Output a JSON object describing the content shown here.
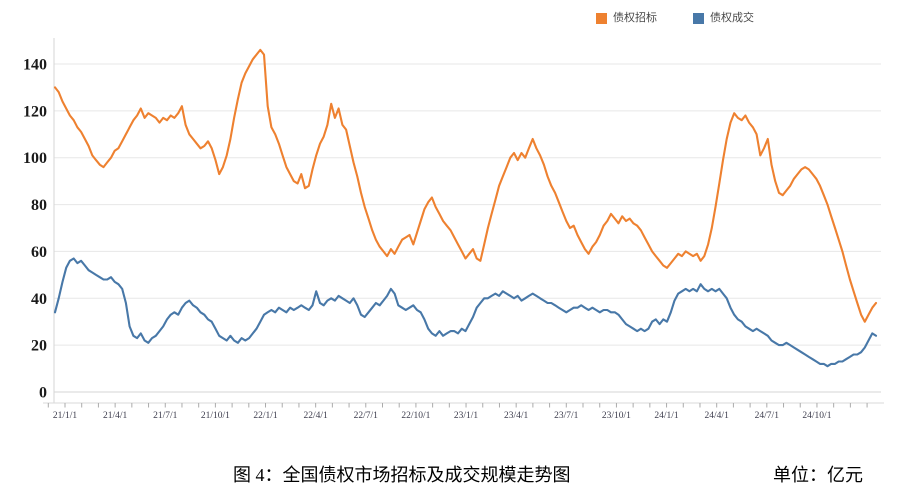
{
  "legend": {
    "items": [
      {
        "label": "债权招标",
        "color": "#EE8130"
      },
      {
        "label": "债权成交",
        "color": "#4878A8"
      }
    ]
  },
  "caption": {
    "title": "图 4：全国债权市场招标及成交规模走势图",
    "unit": "单位：亿元"
  },
  "chart_data": {
    "type": "line",
    "title": "全国债权市场招标及成交规模走势图",
    "unit": "亿元",
    "ylim": [
      0,
      140
    ],
    "y_ticks": [
      0,
      20,
      40,
      60,
      80,
      100,
      120,
      140
    ],
    "grid": true,
    "legend_position": "top",
    "x_tick_labels": [
      "21/1/1",
      "21/4/1",
      "21/7/1",
      "21/10/1",
      "22/1/1",
      "22/4/1",
      "22/7/1",
      "22/10/1",
      "23/1/1",
      "23/4/1",
      "23/7/1",
      "23/10/1",
      "24/1/1",
      "24/4/1",
      "24/7/1",
      "24/10/1"
    ],
    "x_frequency": "weekly",
    "series": [
      {
        "name": "债权招标",
        "color": "#EE8130",
        "values": [
          130,
          128,
          124,
          121,
          118,
          116,
          113,
          111,
          108,
          105,
          101,
          99,
          97,
          96,
          98,
          100,
          103,
          104,
          107,
          110,
          113,
          116,
          118,
          121,
          117,
          119,
          118,
          117,
          115,
          117,
          116,
          118,
          117,
          119,
          122,
          114,
          110,
          108,
          106,
          104,
          105,
          107,
          104,
          99,
          93,
          96,
          101,
          108,
          117,
          125,
          132,
          136,
          139,
          142,
          144,
          146,
          144,
          122,
          113,
          110,
          106,
          101,
          96,
          93,
          90,
          89,
          93,
          87,
          88,
          95,
          101,
          106,
          109,
          114,
          123,
          117,
          121,
          114,
          112,
          105,
          98,
          92,
          85,
          79,
          74,
          69,
          65,
          62,
          60,
          58,
          61,
          59,
          62,
          65,
          66,
          67,
          63,
          68,
          73,
          78,
          81,
          83,
          79,
          76,
          73,
          71,
          69,
          66,
          63,
          60,
          57,
          59,
          61,
          57,
          56,
          63,
          70,
          76,
          82,
          88,
          92,
          96,
          100,
          102,
          99,
          102,
          100,
          104,
          108,
          104,
          101,
          97,
          92,
          88,
          85,
          81,
          77,
          73,
          70,
          71,
          67,
          64,
          61,
          59,
          62,
          64,
          67,
          71,
          73,
          76,
          74,
          72,
          75,
          73,
          74,
          72,
          71,
          69,
          66,
          63,
          60,
          58,
          56,
          54,
          53,
          55,
          57,
          59,
          58,
          60,
          59,
          58,
          59,
          56,
          58,
          63,
          70,
          79,
          89,
          99,
          108,
          115,
          119,
          117,
          116,
          118,
          115,
          113,
          110,
          101,
          104,
          108,
          97,
          90,
          85,
          84,
          86,
          88,
          91,
          93,
          95,
          96,
          95,
          93,
          91,
          88,
          84,
          80,
          75,
          70,
          65,
          60,
          54,
          48,
          43,
          38,
          33,
          30,
          33,
          36,
          38
        ]
      },
      {
        "name": "债权成交",
        "color": "#4878A8",
        "values": [
          34,
          40,
          47,
          53,
          56,
          57,
          55,
          56,
          54,
          52,
          51,
          50,
          49,
          48,
          48,
          49,
          47,
          46,
          44,
          38,
          28,
          24,
          23,
          25,
          22,
          21,
          23,
          24,
          26,
          28,
          31,
          33,
          34,
          33,
          36,
          38,
          39,
          37,
          36,
          34,
          33,
          31,
          30,
          27,
          24,
          23,
          22,
          24,
          22,
          21,
          23,
          22,
          23,
          25,
          27,
          30,
          33,
          34,
          35,
          34,
          36,
          35,
          34,
          36,
          35,
          36,
          37,
          36,
          35,
          37,
          43,
          38,
          37,
          39,
          40,
          39,
          41,
          40,
          39,
          38,
          40,
          37,
          33,
          32,
          34,
          36,
          38,
          37,
          39,
          41,
          44,
          42,
          37,
          36,
          35,
          36,
          37,
          35,
          34,
          31,
          27,
          25,
          24,
          26,
          24,
          25,
          26,
          26,
          25,
          27,
          26,
          29,
          32,
          36,
          38,
          40,
          40,
          41,
          42,
          41,
          43,
          42,
          41,
          40,
          41,
          39,
          40,
          41,
          42,
          41,
          40,
          39,
          38,
          38,
          37,
          36,
          35,
          34,
          35,
          36,
          36,
          37,
          36,
          35,
          36,
          35,
          34,
          35,
          35,
          34,
          34,
          33,
          31,
          29,
          28,
          27,
          26,
          27,
          26,
          27,
          30,
          31,
          29,
          31,
          30,
          34,
          39,
          42,
          43,
          44,
          43,
          44,
          43,
          46,
          44,
          43,
          44,
          43,
          44,
          42,
          40,
          36,
          33,
          31,
          30,
          28,
          27,
          26,
          27,
          26,
          25,
          24,
          22,
          21,
          20,
          20,
          21,
          20,
          19,
          18,
          17,
          16,
          15,
          14,
          13,
          12,
          12,
          11,
          12,
          12,
          13,
          13,
          14,
          15,
          16,
          16,
          17,
          19,
          22,
          25,
          24
        ]
      }
    ]
  }
}
